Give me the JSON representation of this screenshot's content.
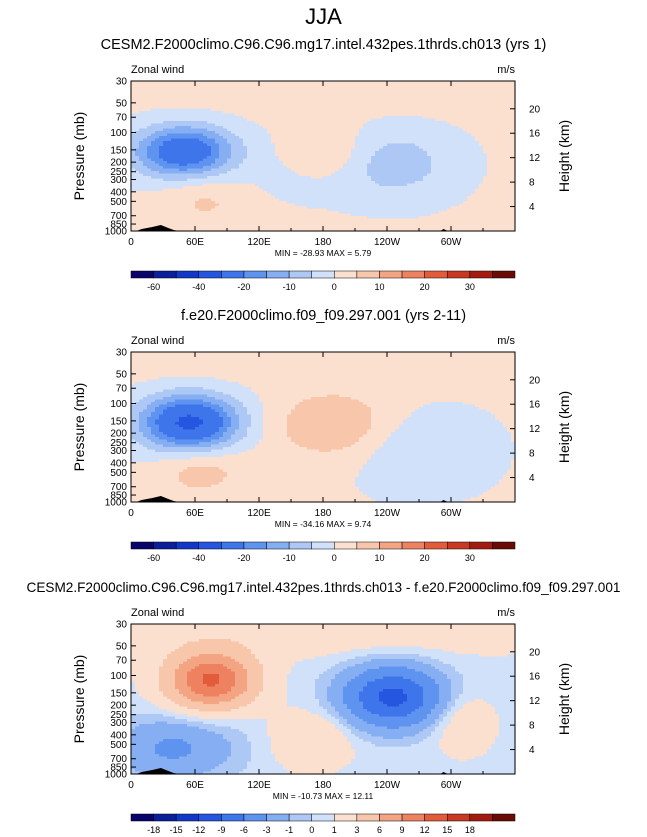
{
  "figure": {
    "title": "JJA"
  },
  "chart_data": [
    {
      "type": "heatmap",
      "title": "CESM2.F2000climo.C96.C96.mg17.intel.432pes.1thrds.ch013 (yrs 1)",
      "subtitle_left": "Zonal wind",
      "subtitle_right": "m/s",
      "ylabel": "Pressure (mb)",
      "ylabel_right": "Height (km)",
      "x_ticks": [
        "0",
        "60E",
        "120E",
        "180",
        "120W",
        "60W"
      ],
      "y_ticks": [
        "30",
        "50",
        "70",
        "100",
        "150",
        "200",
        "250",
        "300",
        "400",
        "500",
        "700",
        "850",
        "1000"
      ],
      "y_right_ticks": [
        "20",
        "16",
        "12",
        "8",
        "4"
      ],
      "stats": "MIN = -28.93  MAX =  5.79",
      "colorbar_labels": [
        "-60",
        "-40",
        "-20",
        "-10",
        "0",
        "10",
        "20",
        "30"
      ],
      "colorbar_levels": [
        -70,
        -60,
        -50,
        -40,
        -30,
        -20,
        -15,
        -10,
        -5,
        0,
        5,
        10,
        15,
        20,
        25,
        30,
        40
      ],
      "min": -28.93,
      "max": 5.79
    },
    {
      "type": "heatmap",
      "title": "f.e20.F2000climo.f09_f09.297.001 (yrs 2-11)",
      "subtitle_left": "Zonal wind",
      "subtitle_right": "m/s",
      "ylabel": "Pressure (mb)",
      "ylabel_right": "Height (km)",
      "x_ticks": [
        "0",
        "60E",
        "120E",
        "180",
        "120W",
        "60W"
      ],
      "y_ticks": [
        "30",
        "50",
        "70",
        "100",
        "150",
        "200",
        "250",
        "300",
        "400",
        "500",
        "700",
        "850",
        "1000"
      ],
      "y_right_ticks": [
        "20",
        "16",
        "12",
        "8",
        "4"
      ],
      "stats": "MIN = -34.16  MAX =  9.74",
      "colorbar_labels": [
        "-60",
        "-40",
        "-20",
        "-10",
        "0",
        "10",
        "20",
        "30"
      ],
      "colorbar_levels": [
        -70,
        -60,
        -50,
        -40,
        -30,
        -20,
        -15,
        -10,
        -5,
        0,
        5,
        10,
        15,
        20,
        25,
        30,
        40
      ],
      "min": -34.16,
      "max": 9.74
    },
    {
      "type": "heatmap",
      "title": "CESM2.F2000climo.C96.C96.mg17.intel.432pes.1thrds.ch013 - f.e20.F2000climo.f09_f09.297.001",
      "subtitle_left": "Zonal wind",
      "subtitle_right": "m/s",
      "ylabel": "Pressure (mb)",
      "ylabel_right": "Height (km)",
      "x_ticks": [
        "0",
        "60E",
        "120E",
        "180",
        "120W",
        "60W"
      ],
      "y_ticks": [
        "30",
        "50",
        "70",
        "100",
        "150",
        "200",
        "250",
        "300",
        "400",
        "500",
        "700",
        "850",
        "1000"
      ],
      "y_right_ticks": [
        "20",
        "16",
        "12",
        "8",
        "4"
      ],
      "stats": "MIN = -10.73  MAX = 12.11",
      "colorbar_labels": [
        "-18",
        "-15",
        "-12",
        "-9",
        "-6",
        "-3",
        "-1",
        "0",
        "1",
        "3",
        "6",
        "9",
        "12",
        "15",
        "18"
      ],
      "colorbar_levels": [
        -21,
        -18,
        -15,
        -12,
        -9,
        -6,
        -3,
        -1,
        0,
        1,
        3,
        6,
        9,
        12,
        15,
        18,
        21
      ],
      "min": -10.73,
      "max": 12.11
    }
  ],
  "palette": [
    "#08046b",
    "#0a1f99",
    "#1338c8",
    "#2556e0",
    "#3f75ea",
    "#5e93f0",
    "#86aef3",
    "#adc8f5",
    "#d0e1f9",
    "#fbe0cf",
    "#f8c6aa",
    "#f3a583",
    "#ee8260",
    "#e25c3c",
    "#c93822",
    "#a31a10",
    "#6b0b06"
  ]
}
